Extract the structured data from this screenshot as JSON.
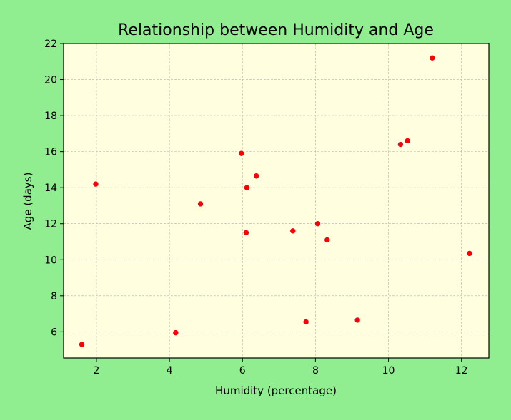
{
  "colors": {
    "page_background": "#90ee90",
    "plot_background": "#ffffe0",
    "point_color": "#ff0000",
    "grid_color": "#b0b0b0"
  },
  "chart_data": {
    "type": "scatter",
    "title": "Relationship between Humidity and Age",
    "xlabel": "Humidity (percentage)",
    "ylabel": "Age (days)",
    "xlim": [
      1.1,
      12.75
    ],
    "ylim": [
      4.55,
      22.0
    ],
    "xticks": [
      2,
      4,
      6,
      8,
      10,
      12
    ],
    "yticks": [
      6,
      8,
      10,
      12,
      14,
      16,
      18,
      20,
      22
    ],
    "grid": true,
    "points": [
      {
        "x": 1.6,
        "y": 5.3
      },
      {
        "x": 1.98,
        "y": 14.2
      },
      {
        "x": 4.17,
        "y": 5.95
      },
      {
        "x": 4.85,
        "y": 13.1
      },
      {
        "x": 5.97,
        "y": 15.9
      },
      {
        "x": 6.1,
        "y": 11.5
      },
      {
        "x": 6.12,
        "y": 14.0
      },
      {
        "x": 6.38,
        "y": 14.65
      },
      {
        "x": 7.38,
        "y": 11.6
      },
      {
        "x": 7.74,
        "y": 6.55
      },
      {
        "x": 8.06,
        "y": 12.0
      },
      {
        "x": 8.32,
        "y": 11.1
      },
      {
        "x": 9.15,
        "y": 6.65
      },
      {
        "x": 10.33,
        "y": 16.4
      },
      {
        "x": 10.52,
        "y": 16.6
      },
      {
        "x": 11.2,
        "y": 21.2
      },
      {
        "x": 12.22,
        "y": 10.35
      }
    ]
  }
}
